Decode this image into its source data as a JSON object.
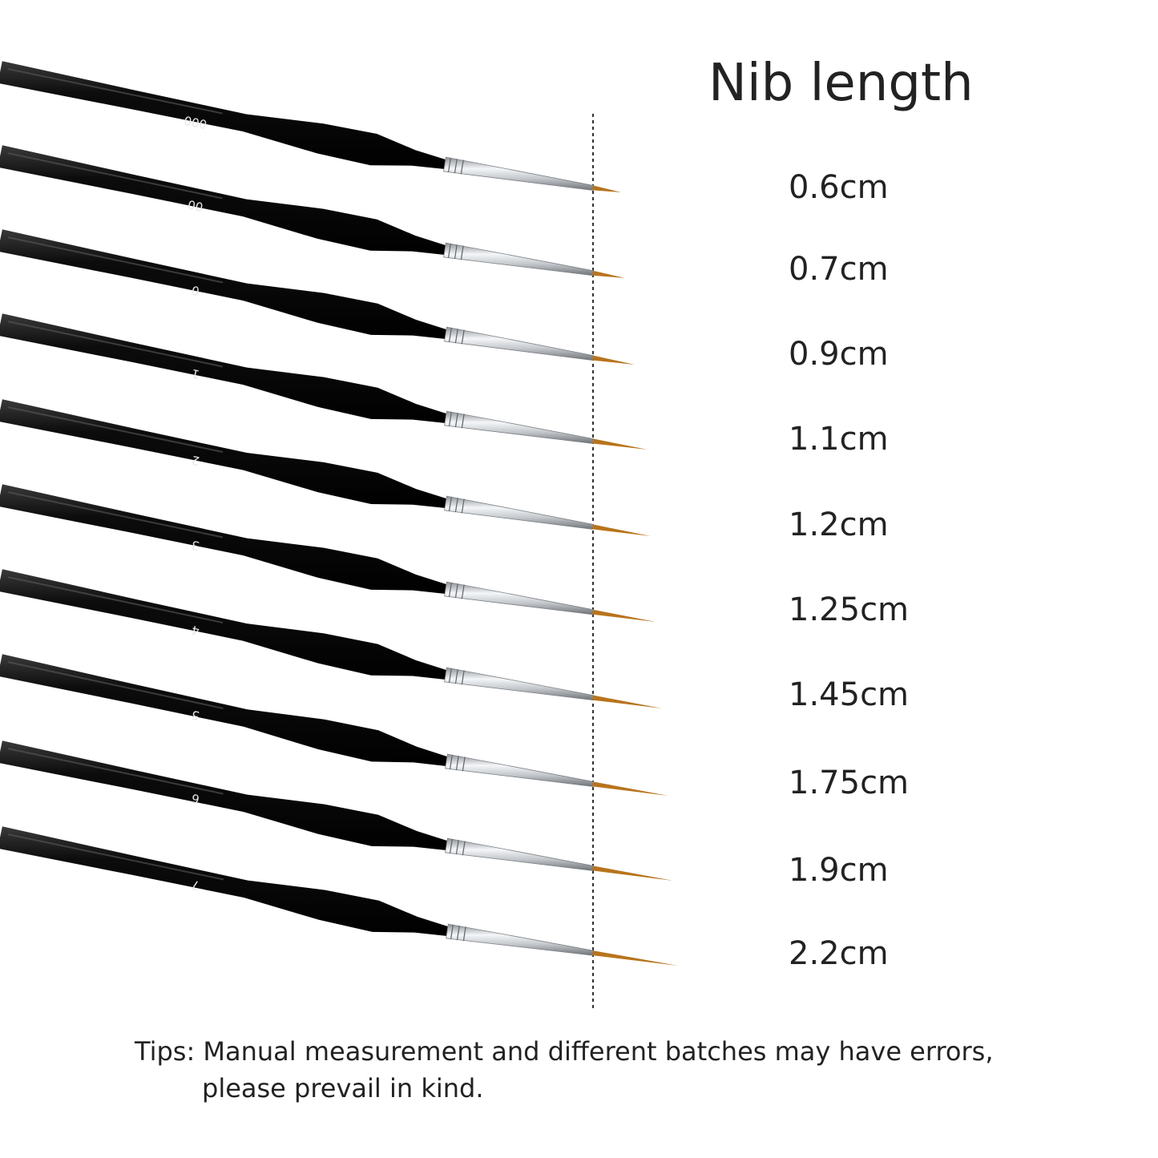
{
  "title": "Nib length",
  "brushes": [
    {
      "size_label": "000",
      "nib_length": "0.6cm"
    },
    {
      "size_label": "00",
      "nib_length": "0.7cm"
    },
    {
      "size_label": "0",
      "nib_length": "0.9cm"
    },
    {
      "size_label": "1",
      "nib_length": "1.1cm"
    },
    {
      "size_label": "2",
      "nib_length": "1.2cm"
    },
    {
      "size_label": "3",
      "nib_length": "1.25cm"
    },
    {
      "size_label": "4",
      "nib_length": "1.45cm"
    },
    {
      "size_label": "5",
      "nib_length": "1.75cm"
    },
    {
      "size_label": "6",
      "nib_length": "1.9cm"
    },
    {
      "size_label": "7",
      "nib_length": "2.2cm"
    }
  ],
  "tips": {
    "line1": "Tips: Manual measurement and different batches may have errors,",
    "line2": "please prevail in kind."
  },
  "colors": {
    "handle": "#0a0a0a",
    "ferrule": "#c9ccd0",
    "bristle": "#b8741c",
    "text": "#222222"
  }
}
